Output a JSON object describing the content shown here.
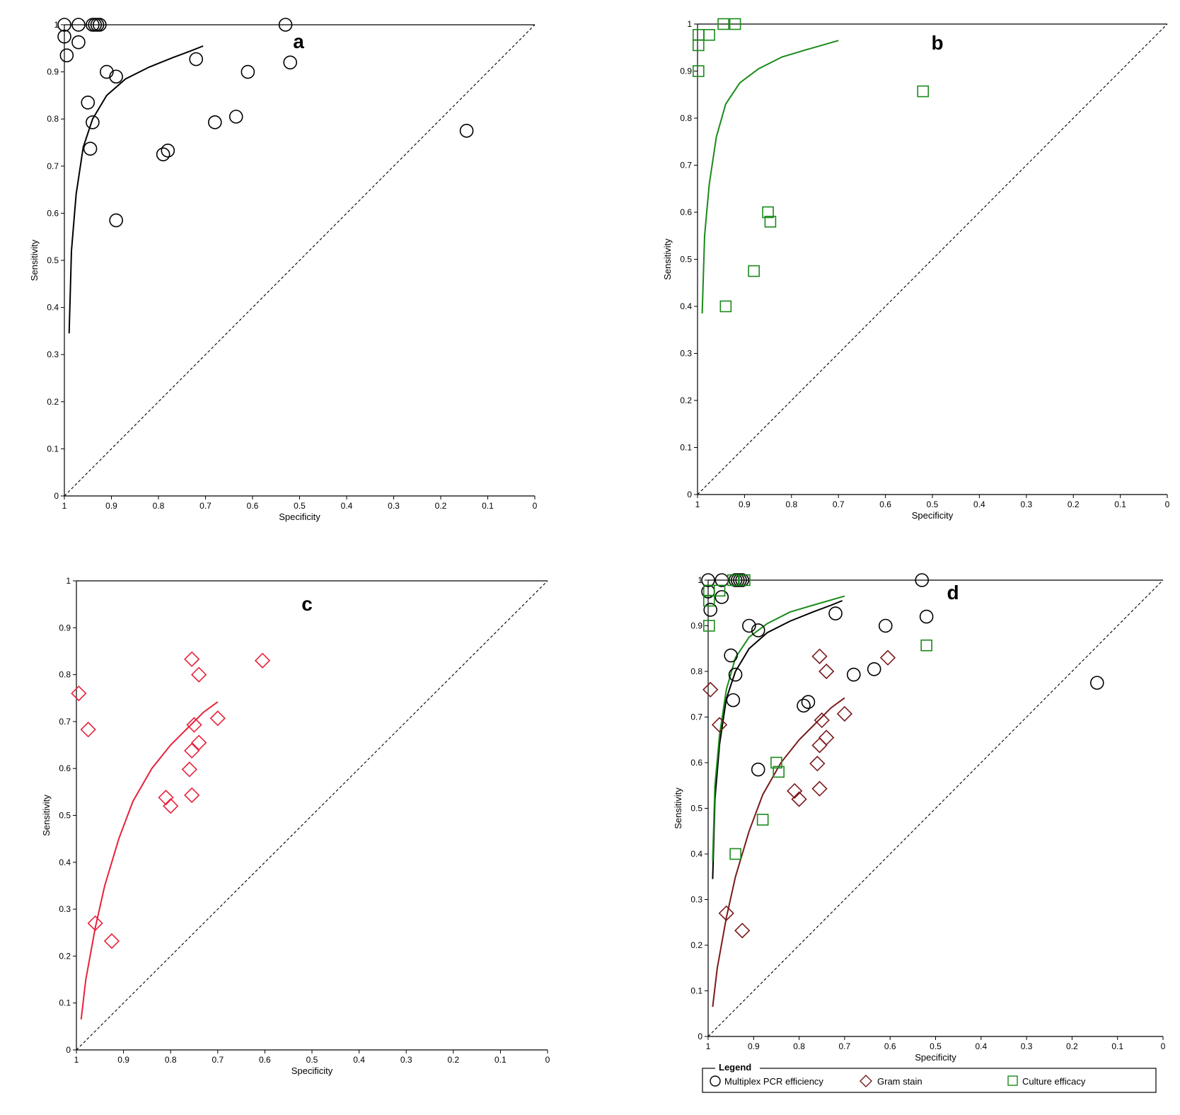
{
  "figure": {
    "axis_tick_labels": [
      "0",
      "0.1",
      "0.2",
      "0.3",
      "0.4",
      "0.5",
      "0.6",
      "0.7",
      "0.8",
      "0.9",
      "1"
    ],
    "colors": {
      "pcr": "#000000",
      "gram": "#7a1a1a",
      "gram_single": "#e8213a",
      "culture": "#1a8a1a"
    }
  },
  "chart_data": [
    {
      "panel": "a",
      "type": "scatter",
      "xlabel": "Specificity",
      "ylabel": "Sensitivity",
      "xlim": [
        1,
        0
      ],
      "ylim": [
        0,
        1
      ],
      "xdir": "reversed",
      "grid": false,
      "reference_diagonal": true,
      "series": [
        {
          "key": "pcr",
          "marker": "circle",
          "color": "#000000",
          "points": [
            [
              1.0,
              1.0
            ],
            [
              0.97,
              1.0
            ],
            [
              0.94,
              1.0
            ],
            [
              0.935,
              1.0
            ],
            [
              0.93,
              1.0
            ],
            [
              0.925,
              1.0
            ],
            [
              0.53,
              1.0
            ],
            [
              1.0,
              0.975
            ],
            [
              0.995,
              0.935
            ],
            [
              0.97,
              0.963
            ],
            [
              0.72,
              0.927
            ],
            [
              0.52,
              0.92
            ],
            [
              0.91,
              0.9
            ],
            [
              0.89,
              0.89
            ],
            [
              0.61,
              0.9
            ],
            [
              0.95,
              0.835
            ],
            [
              0.94,
              0.793
            ],
            [
              0.68,
              0.793
            ],
            [
              0.635,
              0.805
            ],
            [
              0.145,
              0.775
            ],
            [
              0.945,
              0.737
            ],
            [
              0.79,
              0.725
            ],
            [
              0.78,
              0.733
            ],
            [
              0.89,
              0.585
            ]
          ],
          "curve": [
            [
              0.99,
              0.345
            ],
            [
              0.985,
              0.52
            ],
            [
              0.975,
              0.64
            ],
            [
              0.96,
              0.74
            ],
            [
              0.94,
              0.8
            ],
            [
              0.91,
              0.85
            ],
            [
              0.87,
              0.885
            ],
            [
              0.82,
              0.91
            ],
            [
              0.77,
              0.93
            ],
            [
              0.73,
              0.945
            ],
            [
              0.705,
              0.955
            ]
          ]
        }
      ]
    },
    {
      "panel": "b",
      "type": "scatter",
      "xlabel": "Specificity",
      "ylabel": "Sensitivity",
      "xlim": [
        1,
        0
      ],
      "ylim": [
        0,
        1
      ],
      "xdir": "reversed",
      "grid": false,
      "reference_diagonal": true,
      "series": [
        {
          "key": "culture",
          "marker": "square",
          "color": "#1a8a1a",
          "points": [
            [
              0.945,
              1.0
            ],
            [
              0.92,
              1.0
            ],
            [
              0.998,
              0.977
            ],
            [
              0.975,
              0.977
            ],
            [
              0.998,
              0.955
            ],
            [
              0.998,
              0.9
            ],
            [
              0.52,
              0.857
            ],
            [
              0.85,
              0.6
            ],
            [
              0.845,
              0.58
            ],
            [
              0.88,
              0.475
            ],
            [
              0.94,
              0.4
            ]
          ],
          "curve": [
            [
              0.99,
              0.385
            ],
            [
              0.985,
              0.55
            ],
            [
              0.975,
              0.66
            ],
            [
              0.96,
              0.76
            ],
            [
              0.94,
              0.83
            ],
            [
              0.91,
              0.875
            ],
            [
              0.87,
              0.905
            ],
            [
              0.82,
              0.93
            ],
            [
              0.77,
              0.945
            ],
            [
              0.7,
              0.965
            ]
          ]
        }
      ]
    },
    {
      "panel": "c",
      "type": "scatter",
      "xlabel": "Specificity",
      "ylabel": "Sensitivity",
      "xlim": [
        1,
        0
      ],
      "ylim": [
        0,
        1
      ],
      "xdir": "reversed",
      "grid": false,
      "reference_diagonal": true,
      "series": [
        {
          "key": "gram",
          "marker": "diamond",
          "color": "#e8213a",
          "points": [
            [
              0.995,
              0.76
            ],
            [
              0.975,
              0.683
            ],
            [
              0.755,
              0.833
            ],
            [
              0.74,
              0.8
            ],
            [
              0.605,
              0.83
            ],
            [
              0.75,
              0.693
            ],
            [
              0.7,
              0.707
            ],
            [
              0.74,
              0.655
            ],
            [
              0.755,
              0.638
            ],
            [
              0.76,
              0.598
            ],
            [
              0.755,
              0.543
            ],
            [
              0.81,
              0.538
            ],
            [
              0.8,
              0.52
            ],
            [
              0.96,
              0.27
            ],
            [
              0.925,
              0.232
            ]
          ],
          "curve": [
            [
              0.99,
              0.065
            ],
            [
              0.98,
              0.15
            ],
            [
              0.96,
              0.26
            ],
            [
              0.94,
              0.35
            ],
            [
              0.91,
              0.45
            ],
            [
              0.88,
              0.53
            ],
            [
              0.84,
              0.6
            ],
            [
              0.8,
              0.65
            ],
            [
              0.76,
              0.69
            ],
            [
              0.73,
              0.72
            ],
            [
              0.7,
              0.742
            ]
          ]
        }
      ]
    },
    {
      "panel": "d",
      "type": "scatter",
      "xlabel": "Specificity",
      "ylabel": "Sensitivity",
      "xlim": [
        1,
        0
      ],
      "ylim": [
        0,
        1
      ],
      "xdir": "reversed",
      "grid": false,
      "reference_diagonal": true,
      "legend": {
        "title": "Legend",
        "placement": "bottom"
      },
      "series": [
        {
          "key": "pcr",
          "name": "Multiplex PCR efficiency",
          "marker": "circle",
          "color": "#000000",
          "points": [
            [
              1.0,
              1.0
            ],
            [
              0.97,
              1.0
            ],
            [
              0.94,
              1.0
            ],
            [
              0.935,
              1.0
            ],
            [
              0.93,
              1.0
            ],
            [
              0.925,
              1.0
            ],
            [
              0.53,
              1.0
            ],
            [
              1.0,
              0.975
            ],
            [
              0.995,
              0.935
            ],
            [
              0.97,
              0.963
            ],
            [
              0.72,
              0.927
            ],
            [
              0.52,
              0.92
            ],
            [
              0.91,
              0.9
            ],
            [
              0.89,
              0.89
            ],
            [
              0.61,
              0.9
            ],
            [
              0.95,
              0.835
            ],
            [
              0.94,
              0.793
            ],
            [
              0.68,
              0.793
            ],
            [
              0.635,
              0.805
            ],
            [
              0.145,
              0.775
            ],
            [
              0.945,
              0.737
            ],
            [
              0.79,
              0.725
            ],
            [
              0.78,
              0.733
            ],
            [
              0.89,
              0.585
            ]
          ],
          "curve": [
            [
              0.99,
              0.345
            ],
            [
              0.985,
              0.52
            ],
            [
              0.975,
              0.64
            ],
            [
              0.96,
              0.74
            ],
            [
              0.94,
              0.8
            ],
            [
              0.91,
              0.85
            ],
            [
              0.87,
              0.885
            ],
            [
              0.82,
              0.91
            ],
            [
              0.77,
              0.93
            ],
            [
              0.73,
              0.945
            ],
            [
              0.705,
              0.955
            ]
          ]
        },
        {
          "key": "gram",
          "name": "Gram stain",
          "marker": "diamond",
          "color": "#7a1a1a",
          "points": [
            [
              0.995,
              0.76
            ],
            [
              0.975,
              0.683
            ],
            [
              0.755,
              0.833
            ],
            [
              0.74,
              0.8
            ],
            [
              0.605,
              0.83
            ],
            [
              0.75,
              0.693
            ],
            [
              0.7,
              0.707
            ],
            [
              0.74,
              0.655
            ],
            [
              0.755,
              0.638
            ],
            [
              0.76,
              0.598
            ],
            [
              0.755,
              0.543
            ],
            [
              0.81,
              0.538
            ],
            [
              0.8,
              0.52
            ],
            [
              0.96,
              0.27
            ],
            [
              0.925,
              0.232
            ]
          ],
          "curve": [
            [
              0.99,
              0.065
            ],
            [
              0.98,
              0.15
            ],
            [
              0.96,
              0.26
            ],
            [
              0.94,
              0.35
            ],
            [
              0.91,
              0.45
            ],
            [
              0.88,
              0.53
            ],
            [
              0.84,
              0.6
            ],
            [
              0.8,
              0.65
            ],
            [
              0.76,
              0.69
            ],
            [
              0.73,
              0.72
            ],
            [
              0.7,
              0.742
            ]
          ]
        },
        {
          "key": "culture",
          "name": "Culture efficacy",
          "marker": "square",
          "color": "#1a8a1a",
          "points": [
            [
              0.945,
              1.0
            ],
            [
              0.92,
              1.0
            ],
            [
              0.998,
              0.977
            ],
            [
              0.975,
              0.977
            ],
            [
              0.998,
              0.955
            ],
            [
              0.998,
              0.9
            ],
            [
              0.52,
              0.857
            ],
            [
              0.85,
              0.6
            ],
            [
              0.845,
              0.58
            ],
            [
              0.88,
              0.475
            ],
            [
              0.94,
              0.4
            ]
          ],
          "curve": [
            [
              0.99,
              0.385
            ],
            [
              0.985,
              0.55
            ],
            [
              0.975,
              0.66
            ],
            [
              0.96,
              0.76
            ],
            [
              0.94,
              0.83
            ],
            [
              0.91,
              0.875
            ],
            [
              0.87,
              0.905
            ],
            [
              0.82,
              0.93
            ],
            [
              0.77,
              0.945
            ],
            [
              0.7,
              0.965
            ]
          ]
        }
      ]
    }
  ]
}
